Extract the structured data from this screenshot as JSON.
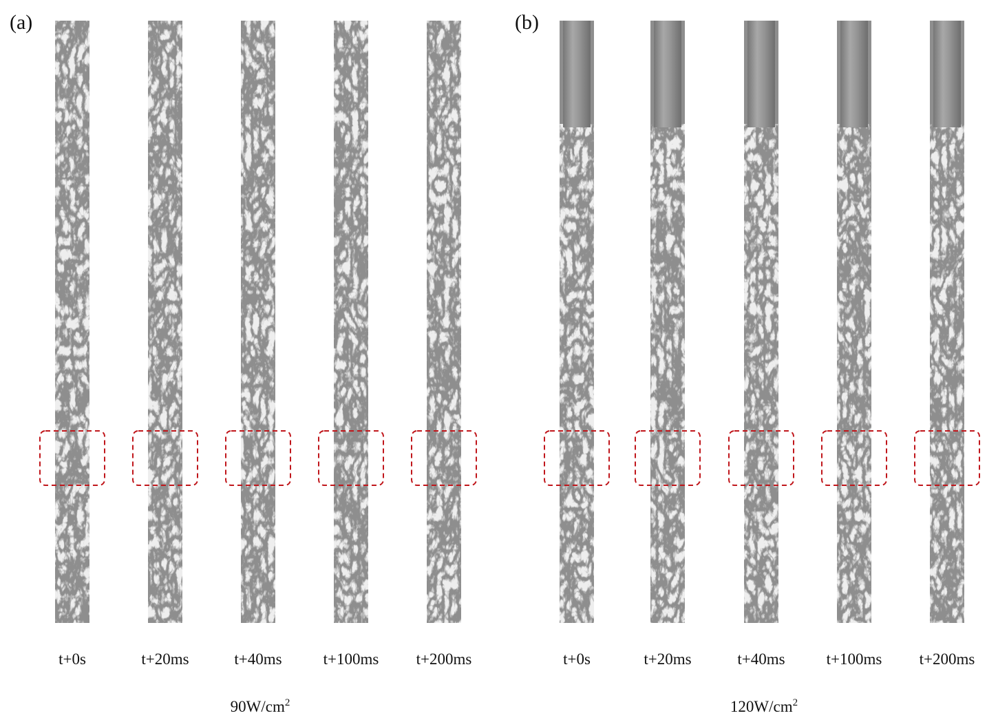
{
  "panels": [
    {
      "label": "(a)",
      "frames": [
        "t+0s",
        "t+20ms",
        "t+40ms",
        "t+100ms",
        "t+200ms"
      ],
      "caption": {
        "text": "90W/cm",
        "sup": "2"
      }
    },
    {
      "label": "(b)",
      "frames": [
        "t+0s",
        "t+20ms",
        "t+40ms",
        "t+100ms",
        "t+200ms"
      ],
      "caption": {
        "text": "120W/cm",
        "sup": "2"
      }
    }
  ]
}
